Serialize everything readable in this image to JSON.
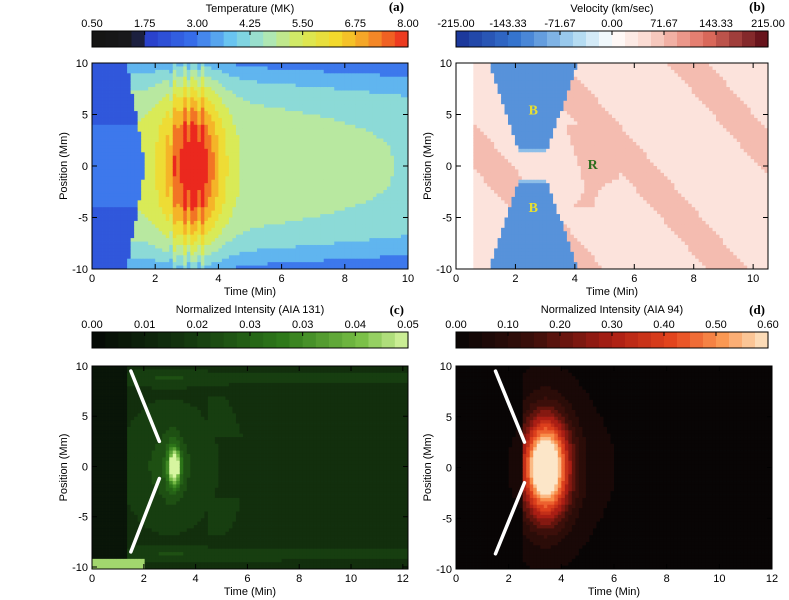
{
  "chart_data": [
    {
      "panel": "(a)",
      "type": "heatmap",
      "colorbar": {
        "title": "Temperature (MK)",
        "ticks": [
          "0.50",
          "1.75",
          "3.00",
          "4.25",
          "5.50",
          "6.75",
          "8.00"
        ],
        "range": [
          0.5,
          8.0
        ],
        "colormap": "temperature-rainbow"
      },
      "xlabel": "Time (Min)",
      "ylabel": "Position (Mm)",
      "xlim": [
        0,
        10
      ],
      "ylim": [
        -10,
        10
      ],
      "xticks": [
        "0",
        "2",
        "4",
        "6",
        "8",
        "10"
      ],
      "yticks": [
        "-10",
        "-5",
        "0",
        "5",
        "10"
      ],
      "features": {
        "front_start_min": 1.7,
        "hot_core_min": [
          2.8,
          3.6
        ],
        "peak_temperature_MK": 8.0,
        "late_temperature_MK": 4.5
      }
    },
    {
      "panel": "(b)",
      "type": "heatmap",
      "colorbar": {
        "title": "Velocity (km/sec)",
        "ticks": [
          "-215.00",
          "-143.33",
          "-71.67",
          "0.00",
          "71.67",
          "143.33",
          "215.00"
        ],
        "range": [
          -215,
          215
        ],
        "colormap": "blue-white-red"
      },
      "xlabel": "Time (Min)",
      "ylabel": "Position (Mm)",
      "xlim": [
        0,
        10.5
      ],
      "ylim": [
        -10,
        10
      ],
      "xticks": [
        "0",
        "2",
        "4",
        "6",
        "8",
        "10"
      ],
      "yticks": [
        "-10",
        "-5",
        "0",
        "5",
        "10"
      ],
      "annotations": [
        {
          "text": "B",
          "x": 2.6,
          "y": 5.5,
          "color": "#e8e030"
        },
        {
          "text": "R",
          "x": 4.6,
          "y": 0.2,
          "color": "#2e6e1e"
        },
        {
          "text": "B",
          "x": 2.6,
          "y": -4.0,
          "color": "#e8e030"
        }
      ]
    },
    {
      "panel": "(c)",
      "type": "heatmap",
      "colorbar": {
        "title": "Normalized Intensity (AIA 131)",
        "ticks": [
          "0.00",
          "0.01",
          "0.02",
          "0.03",
          "0.03",
          "0.04",
          "0.05"
        ],
        "range": [
          0.0,
          0.05
        ],
        "colormap": "black-green"
      },
      "xlabel": "Time (Min)",
      "ylabel": "Position (Mm)",
      "xlim": [
        0,
        12.2
      ],
      "ylim": [
        -10.2,
        10
      ],
      "xticks": [
        "0",
        "2",
        "4",
        "6",
        "8",
        "10",
        "12"
      ],
      "yticks": [
        "-10",
        "-5",
        "0",
        "5",
        "10"
      ],
      "guide_lines": [
        {
          "x": [
            1.5,
            2.6
          ],
          "y": [
            9.5,
            2.5
          ]
        },
        {
          "x": [
            2.6,
            1.5
          ],
          "y": [
            -1.2,
            -8.5
          ]
        }
      ]
    },
    {
      "panel": "(d)",
      "type": "heatmap",
      "colorbar": {
        "title": "Normalized Intensity (AIA 94)",
        "ticks": [
          "0.00",
          "0.10",
          "0.20",
          "0.30",
          "0.40",
          "0.50",
          "0.60"
        ],
        "range": [
          0.0,
          0.6
        ],
        "colormap": "black-red-yellow"
      },
      "xlabel": "Time (Min)",
      "ylabel": "Position (Mm)",
      "xlim": [
        0,
        12
      ],
      "ylim": [
        -10,
        10
      ],
      "xticks": [
        "0",
        "2",
        "4",
        "6",
        "8",
        "10",
        "12"
      ],
      "yticks": [
        "-10",
        "-5",
        "0",
        "5",
        "10"
      ],
      "guide_lines": [
        {
          "x": [
            1.5,
            2.6
          ],
          "y": [
            9.5,
            2.5
          ]
        },
        {
          "x": [
            2.6,
            1.5
          ],
          "y": [
            -1.5,
            -8.5
          ]
        }
      ]
    }
  ]
}
